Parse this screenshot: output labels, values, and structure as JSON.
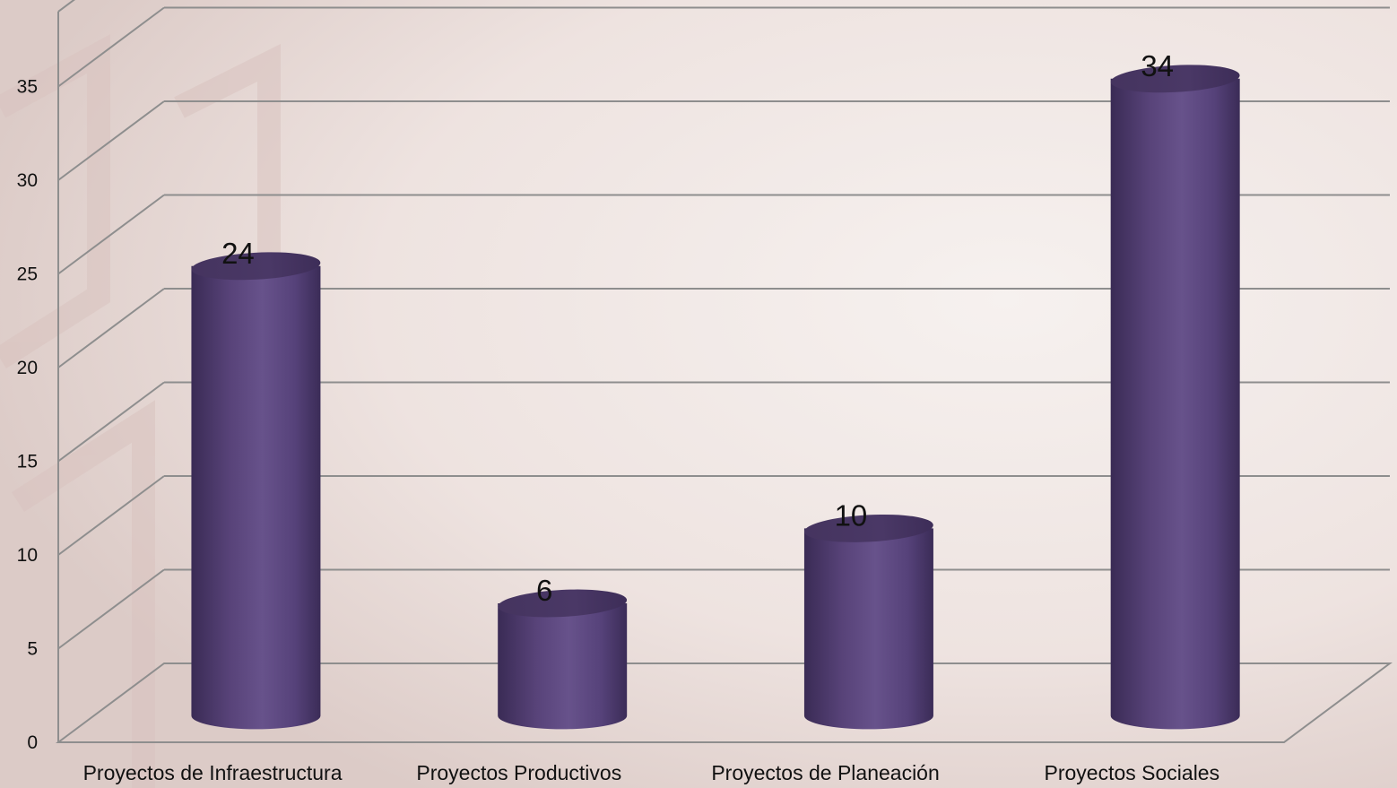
{
  "chart_data": {
    "type": "bar",
    "categories": [
      "Proyectos de Infraestructura",
      "Proyectos Productivos",
      "Proyectos de Planeación",
      "Proyectos Sociales"
    ],
    "values": [
      24,
      6,
      10,
      34
    ],
    "data_labels": [
      "24",
      "6",
      "10",
      "34"
    ],
    "yticks": [
      0,
      5,
      10,
      15,
      20,
      25,
      30,
      35
    ],
    "ylim": [
      0,
      39
    ],
    "grid": true,
    "legend": "none",
    "bar_shape": "cylinder-3d",
    "bar_color": "#5c4880"
  }
}
